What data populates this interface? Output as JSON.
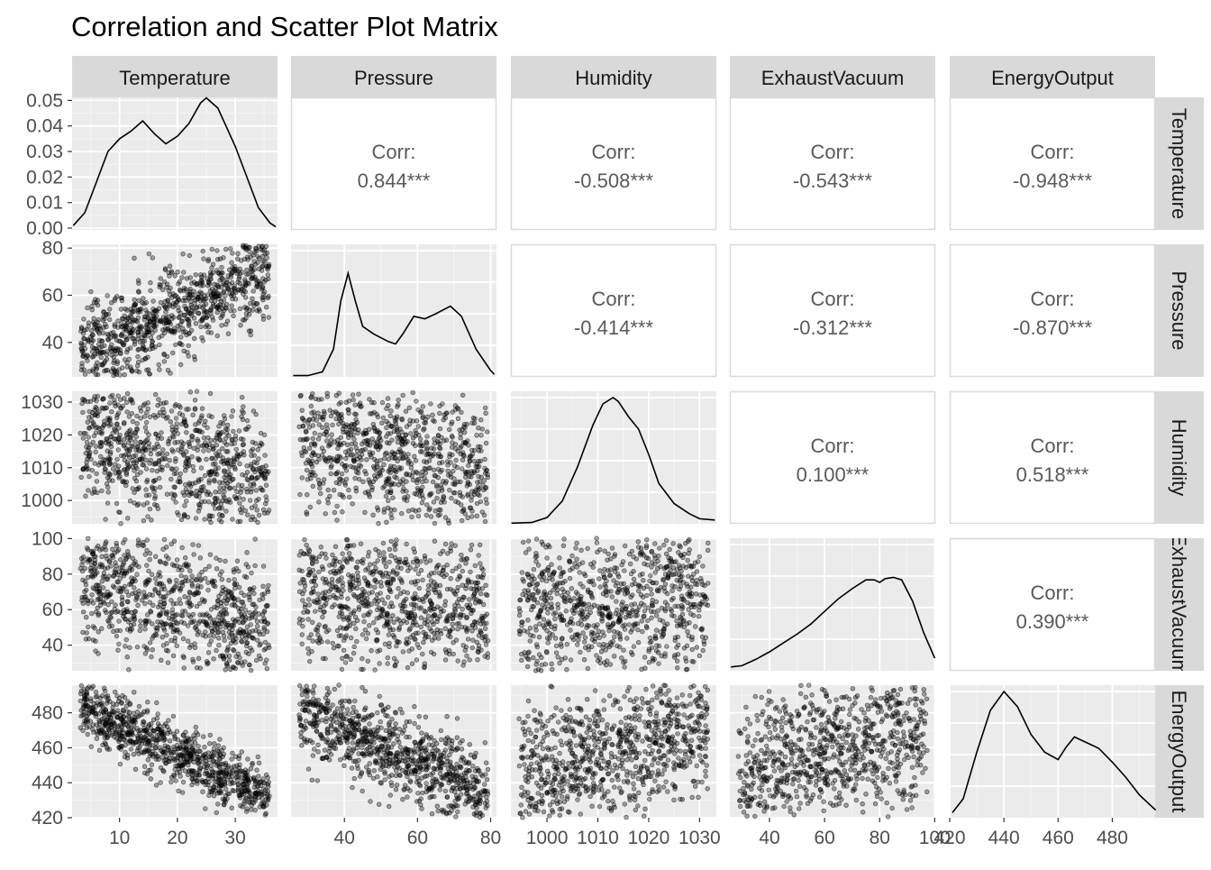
{
  "title": "Correlation and Scatter Plot Matrix",
  "chart_data": {
    "type": "scatter",
    "variables": [
      "Temperature",
      "Pressure",
      "Humidity",
      "ExhaustVacuum",
      "EnergyOutput"
    ],
    "strip_labels_right": [
      "Temperature",
      "Pressure",
      "Humidity",
      "ExhaustVacuum",
      "EnergyOutput"
    ],
    "x_ranges": {
      "Temperature": [
        1.8,
        37.3
      ],
      "Pressure": [
        25.4,
        81.6
      ],
      "Humidity": [
        992.9,
        1033.3
      ],
      "ExhaustVacuum": [
        25.6,
        100.2
      ],
      "EnergyOutput": [
        420.0,
        495.8
      ]
    },
    "x_ticks": {
      "Temperature": [
        "10",
        "20",
        "30"
      ],
      "Pressure": [
        "40",
        "60",
        "80"
      ],
      "Humidity": [
        "1000",
        "1010",
        "1020",
        "1030"
      ],
      "ExhaustVacuum": [
        "40",
        "60",
        "80",
        "100"
      ],
      "EnergyOutput": [
        "420",
        "440",
        "460",
        "480"
      ]
    },
    "y_ranges": {
      "Temperature_density": [
        -0.0007,
        0.0512
      ],
      "Pressure": [
        25.4,
        81.6
      ],
      "Humidity": [
        992.9,
        1033.3
      ],
      "ExhaustVacuum": [
        25.6,
        100.2
      ],
      "EnergyOutput": [
        420.0,
        495.8
      ]
    },
    "y_ticks": {
      "Temperature_density": [
        "0.00",
        "0.01",
        "0.02",
        "0.03",
        "0.04",
        "0.05"
      ],
      "Pressure": [
        "40",
        "60",
        "80"
      ],
      "Humidity": [
        "1000",
        "1010",
        "1020",
        "1030"
      ],
      "ExhaustVacuum": [
        "40",
        "60",
        "80",
        "100"
      ],
      "EnergyOutput": [
        "420",
        "440",
        "460",
        "480"
      ]
    },
    "correlations": [
      {
        "row": "Temperature",
        "col": "Pressure",
        "label": "Corr:",
        "value": "0.844***"
      },
      {
        "row": "Temperature",
        "col": "Humidity",
        "label": "Corr:",
        "value": "-0.508***"
      },
      {
        "row": "Temperature",
        "col": "ExhaustVacuum",
        "label": "Corr:",
        "value": "-0.543***"
      },
      {
        "row": "Temperature",
        "col": "EnergyOutput",
        "label": "Corr:",
        "value": "-0.948***"
      },
      {
        "row": "Pressure",
        "col": "Humidity",
        "label": "Corr:",
        "value": "-0.414***"
      },
      {
        "row": "Pressure",
        "col": "ExhaustVacuum",
        "label": "Corr:",
        "value": "-0.312***"
      },
      {
        "row": "Pressure",
        "col": "EnergyOutput",
        "label": "Corr:",
        "value": "-0.870***"
      },
      {
        "row": "Humidity",
        "col": "ExhaustVacuum",
        "label": "Corr:",
        "value": "0.100***"
      },
      {
        "row": "Humidity",
        "col": "EnergyOutput",
        "label": "Corr:",
        "value": "0.518***"
      },
      {
        "row": "ExhaustVacuum",
        "col": "EnergyOutput",
        "label": "Corr:",
        "value": "0.390***"
      }
    ],
    "densities": {
      "Temperature": {
        "x": [
          2,
          4,
          6,
          8,
          10,
          12,
          14,
          16,
          18,
          20,
          22,
          24,
          25,
          27,
          30,
          32,
          34,
          36,
          37
        ],
        "y": [
          0.001,
          0.006,
          0.018,
          0.03,
          0.035,
          0.038,
          0.042,
          0.037,
          0.033,
          0.036,
          0.041,
          0.049,
          0.051,
          0.047,
          0.032,
          0.02,
          0.008,
          0.002,
          0.0005
        ]
      },
      "Pressure": {
        "x": [
          26,
          30,
          34,
          37,
          39,
          41,
          43,
          45,
          48,
          52,
          54,
          56,
          59,
          62,
          65,
          69,
          72,
          76,
          80,
          81
        ],
        "y": [
          0.01,
          0.01,
          0.04,
          0.22,
          0.6,
          0.82,
          0.6,
          0.4,
          0.34,
          0.28,
          0.26,
          0.34,
          0.48,
          0.46,
          0.5,
          0.56,
          0.48,
          0.22,
          0.05,
          0.02
        ]
      },
      "Humidity": {
        "x": [
          993,
          997,
          1000,
          1003,
          1006,
          1009,
          1011,
          1013,
          1014,
          1016,
          1018,
          1020,
          1022,
          1025,
          1028,
          1030,
          1033
        ],
        "y": [
          0.005,
          0.01,
          0.05,
          0.18,
          0.45,
          0.78,
          0.95,
          1.0,
          0.97,
          0.85,
          0.75,
          0.55,
          0.32,
          0.16,
          0.08,
          0.04,
          0.03
        ]
      },
      "ExhaustVacuum": {
        "x": [
          26,
          30,
          35,
          40,
          45,
          50,
          55,
          60,
          65,
          70,
          75,
          78,
          80,
          82,
          85,
          88,
          92,
          96,
          100
        ],
        "y": [
          0.03,
          0.04,
          0.09,
          0.15,
          0.22,
          0.29,
          0.37,
          0.47,
          0.57,
          0.65,
          0.72,
          0.72,
          0.7,
          0.73,
          0.74,
          0.72,
          0.55,
          0.3,
          0.1
        ]
      },
      "EnergyOutput": {
        "x": [
          421,
          425,
          430,
          435,
          440,
          445,
          450,
          455,
          460,
          463,
          466,
          470,
          475,
          480,
          485,
          490,
          496
        ],
        "y": [
          0.04,
          0.15,
          0.52,
          0.85,
          1.0,
          0.88,
          0.66,
          0.52,
          0.46,
          0.56,
          0.64,
          0.6,
          0.55,
          0.44,
          0.32,
          0.18,
          0.06
        ]
      }
    },
    "scatter_relations": [
      {
        "x": "Temperature",
        "y": "Pressure"
      },
      {
        "x": "Temperature",
        "y": "Humidity"
      },
      {
        "x": "Temperature",
        "y": "ExhaustVacuum"
      },
      {
        "x": "Temperature",
        "y": "EnergyOutput"
      },
      {
        "x": "Pressure",
        "y": "Humidity"
      },
      {
        "x": "Pressure",
        "y": "ExhaustVacuum"
      },
      {
        "x": "Pressure",
        "y": "EnergyOutput"
      },
      {
        "x": "Humidity",
        "y": "ExhaustVacuum"
      },
      {
        "x": "Humidity",
        "y": "EnergyOutput"
      },
      {
        "x": "ExhaustVacuum",
        "y": "EnergyOutput"
      }
    ],
    "grid": true,
    "colors": {
      "panel_bg": "#ebebeb",
      "strip_bg": "#d9d9d9",
      "grid_major": "#ffffff",
      "points": "#000000",
      "corr_text": "#595959",
      "axis_text": "#4d4d4d"
    }
  }
}
